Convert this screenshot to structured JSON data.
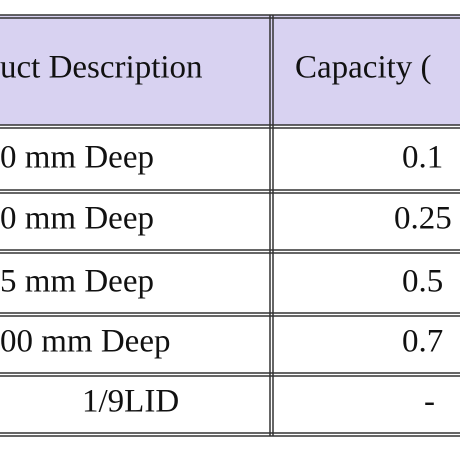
{
  "table": {
    "header": [
      "uct Description",
      "Capacity ("
    ],
    "rows": [
      [
        "0 mm Deep",
        "0.1"
      ],
      [
        "0 mm Deep",
        "0.25"
      ],
      [
        "5 mm Deep",
        "0.5"
      ],
      [
        "00 mm Deep",
        "0.7"
      ],
      [
        "1/9LID",
        "-"
      ]
    ]
  }
}
